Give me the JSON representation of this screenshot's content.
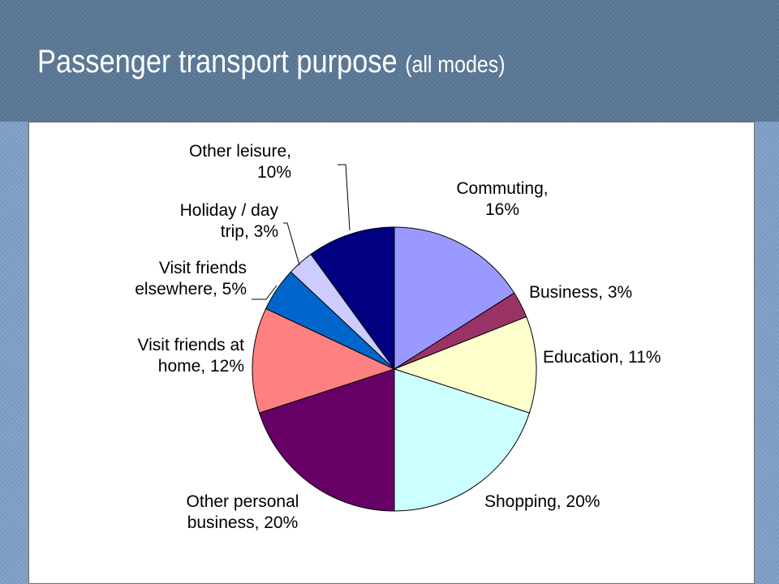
{
  "slide": {
    "title_main": "Passenger transport purpose",
    "title_sub": "(all modes)"
  },
  "chart_data": {
    "type": "pie",
    "slices": [
      {
        "name": "Commuting",
        "value": 16,
        "color": "#9999ff",
        "label": [
          "Commuting,",
          "16%"
        ]
      },
      {
        "name": "Business",
        "value": 3,
        "color": "#993366",
        "label": [
          "Business, 3%"
        ]
      },
      {
        "name": "Education",
        "value": 11,
        "color": "#ffffcc",
        "label": [
          "Education, 11%"
        ]
      },
      {
        "name": "Shopping",
        "value": 20,
        "color": "#ccffff",
        "label": [
          "Shopping, 20%"
        ]
      },
      {
        "name": "Other personal business",
        "value": 20,
        "color": "#660066",
        "label": [
          "Other personal",
          "business, 20%"
        ]
      },
      {
        "name": "Visit friends at home",
        "value": 12,
        "color": "#ff8080",
        "label": [
          "Visit friends at",
          "home, 12%"
        ]
      },
      {
        "name": "Visit friends elsewhere",
        "value": 5,
        "color": "#0066cc",
        "label": [
          "Visit friends",
          "elsewhere, 5%"
        ]
      },
      {
        "name": "Holiday / day trip",
        "value": 3,
        "color": "#ccccff",
        "label": [
          "Holiday / day",
          "trip, 3%"
        ]
      },
      {
        "name": "Other leisure",
        "value": 10,
        "color": "#000080",
        "label": [
          "Other leisure,",
          "10%"
        ]
      }
    ]
  }
}
